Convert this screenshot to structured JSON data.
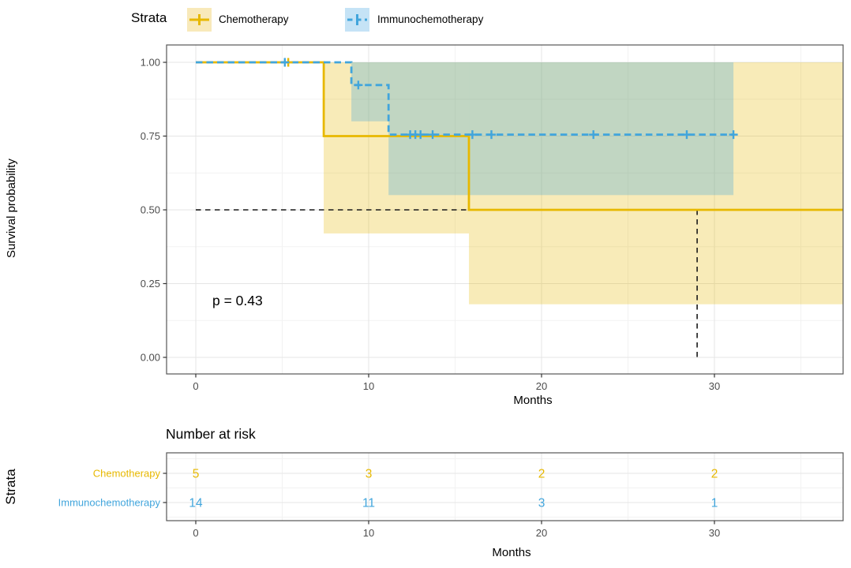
{
  "legend": {
    "title": "Strata",
    "items": [
      {
        "label": "Chemotherapy",
        "color": "#E7B800",
        "key_fill": "#F8E9BA",
        "dash": "solid"
      },
      {
        "label": "Immunochemotherapy",
        "color": "#41A5DC",
        "key_fill": "#C5E3F6",
        "dash": "dashed"
      }
    ]
  },
  "chart_data": [
    {
      "type": "line",
      "subtype": "kaplan-meier-step",
      "title": "",
      "xlabel": "Months",
      "ylabel": "Survival probability",
      "pvalue_label": "p = 0.43",
      "xlim": [
        -1.7,
        37.5
      ],
      "ylim": [
        -0.056,
        1.059
      ],
      "xticks": [
        0,
        10,
        20,
        30
      ],
      "xticks_minor": [
        5,
        15,
        25,
        35
      ],
      "yticks": [
        {
          "v": 0.0,
          "label": "0.00"
        },
        {
          "v": 0.25,
          "label": "0.25"
        },
        {
          "v": 0.5,
          "label": "0.50"
        },
        {
          "v": 0.75,
          "label": "0.75"
        },
        {
          "v": 1.0,
          "label": "1.00"
        }
      ],
      "yticks_minor": [
        0.125,
        0.375,
        0.625,
        0.875
      ],
      "grid": true,
      "legend_position": "top",
      "series": [
        {
          "name": "Chemotherapy",
          "color": "#E7B800",
          "fill": "rgba(231,184,0,0.28)",
          "dash": "solid",
          "steps": [
            [
              0,
              1.0
            ],
            [
              7.4,
              1.0
            ],
            [
              7.4,
              0.75
            ],
            [
              15.8,
              0.75
            ],
            [
              15.8,
              0.5
            ],
            [
              37.5,
              0.5
            ]
          ],
          "censors": [
            [
              5.35,
              1.0
            ]
          ],
          "ci": [
            {
              "x0": 7.4,
              "x1": 15.8,
              "lower": 0.42,
              "upper": 1.0
            },
            {
              "x0": 15.8,
              "x1": 37.5,
              "lower": 0.18,
              "upper": 1.0
            }
          ]
        },
        {
          "name": "Immunochemotherapy",
          "color": "#41A5DC",
          "fill": "rgba(65,165,220,0.30)",
          "dash": "dashed",
          "steps": [
            [
              0,
              1.0
            ],
            [
              9.0,
              1.0
            ],
            [
              9.0,
              0.923
            ],
            [
              11.15,
              0.923
            ],
            [
              11.15,
              0.755
            ],
            [
              31.1,
              0.755
            ]
          ],
          "censors": [
            [
              5.15,
              1.0
            ],
            [
              9.4,
              0.923
            ],
            [
              12.4,
              0.755
            ],
            [
              12.7,
              0.755
            ],
            [
              13.0,
              0.755
            ],
            [
              13.7,
              0.755
            ],
            [
              16.0,
              0.755
            ],
            [
              17.1,
              0.755
            ],
            [
              23.0,
              0.755
            ],
            [
              28.4,
              0.755
            ],
            [
              31.1,
              0.755
            ]
          ],
          "ci": [
            {
              "x0": 9.0,
              "x1": 11.15,
              "lower": 0.8,
              "upper": 1.0
            },
            {
              "x0": 11.15,
              "x1": 31.1,
              "lower": 0.55,
              "upper": 1.0
            }
          ]
        }
      ],
      "median_line": {
        "color": "#1a1a1a",
        "style": "dashed",
        "horizontal": {
          "y": 0.5,
          "x0": 0,
          "x1": 29.0
        },
        "vertical": {
          "x": 29.0,
          "y0": 0.5,
          "y1": 0.0
        }
      }
    },
    {
      "type": "table",
      "title": "Number at risk",
      "xlabel": "Months",
      "ylabel": "Strata",
      "xticks": [
        0,
        10,
        20,
        30
      ],
      "xticks_minor": [
        5,
        15,
        25,
        35
      ],
      "rows": [
        {
          "label": "Chemotherapy",
          "color": "#E7B800",
          "values": [
            "5",
            "3",
            "2",
            "2"
          ]
        },
        {
          "label": "Immunochemotherapy",
          "color": "#41A5DC",
          "values": [
            "14",
            "11",
            "3",
            "1"
          ]
        }
      ]
    }
  ]
}
